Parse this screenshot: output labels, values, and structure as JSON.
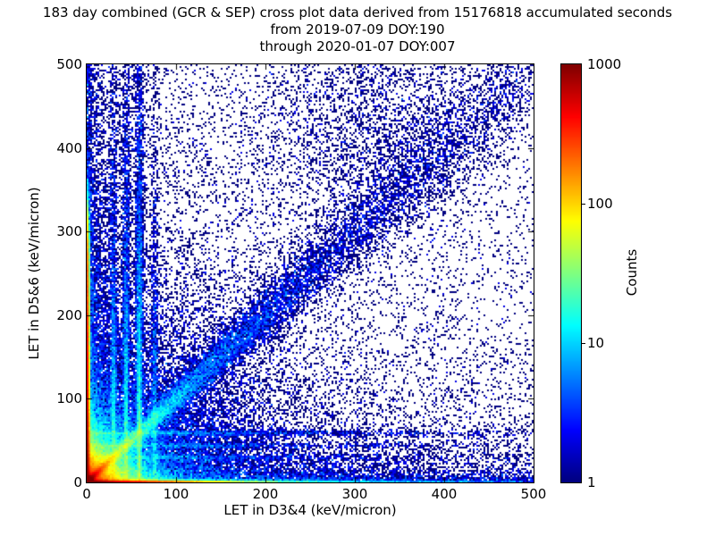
{
  "chart_data": {
    "type": "heatmap",
    "title": "183 day combined (GCR & SEP) cross plot data derived from 15176818 accumulated seconds",
    "subtitle_from": "from 2019-07-09 DOY:190",
    "subtitle_through": "through 2020-01-07 DOY:007",
    "xlabel": "LET in D3&4 (keV/micron)",
    "ylabel": "LET in D5&6 (keV/micron)",
    "xlim": [
      0,
      500
    ],
    "ylim": [
      0,
      500
    ],
    "xticks": [
      0,
      100,
      200,
      300,
      400,
      500
    ],
    "yticks": [
      0,
      100,
      200,
      300,
      400,
      500
    ],
    "grid": false,
    "colorbar": {
      "label": "Counts",
      "scale": "log",
      "range": [
        1,
        1000
      ],
      "ticks": [
        1,
        10,
        100,
        1000
      ],
      "colormap": "jet"
    },
    "palette": {
      "count_1": "#00007f",
      "count_10": "#00d8ff",
      "count_100": "#d4ff23",
      "count_1000": "#7f0000",
      "background": "#ffffff",
      "frame": "#000000"
    },
    "model": {
      "seed": 1234,
      "bins": [
        250,
        234
      ],
      "core": {
        "A": 2200,
        "s": 5.5,
        "B": 500,
        "t": 13
      },
      "bottom_ridge": {
        "w": 2.0,
        "terms": [
          [
            1100,
            55
          ],
          [
            8,
            250
          ]
        ],
        "base": 2.5
      },
      "left_ridge": {
        "w": 2.0,
        "terms": [
          [
            1300,
            160
          ],
          [
            5,
            300
          ]
        ],
        "base": 1.2,
        "cutoff": [
          310,
          18
        ]
      },
      "diagonals": [
        {
          "slope": 1.0,
          "sigma0": 1.6,
          "sigk": 0.055,
          "terms": [
            [
              1000,
              7
            ],
            [
              90,
              30
            ],
            [
              10,
              120
            ],
            [
              0.9,
              380
            ]
          ]
        },
        {
          "slope": 1.5,
          "sigma0": 1.8,
          "sigk": 0.02,
          "terms": [
            [
              60,
              12
            ]
          ]
        },
        {
          "slope": 0.67,
          "sigma0": 1.8,
          "sigk": 0.02,
          "terms": [
            [
              40,
              12
            ]
          ]
        }
      ],
      "stripes_v": [
        {
          "x": 30,
          "A": 16,
          "t": 150
        },
        {
          "x": 44,
          "A": 22,
          "t": 150
        },
        {
          "x": 59,
          "A": 30,
          "t": 160
        },
        {
          "x": 76,
          "A": 9,
          "t": 140
        }
      ],
      "stripes_h": [
        {
          "y": 30,
          "A": 8,
          "t": 130
        },
        {
          "y": 44,
          "A": 9,
          "t": 130
        },
        {
          "y": 59,
          "A": 11,
          "t": 140
        }
      ],
      "stripe_w": [
        1.3,
        0.004
      ],
      "diffuse": [
        {
          "type": "expxy",
          "A": 260,
          "tx": 22,
          "ty": 22
        },
        {
          "type": "expxy",
          "A": 7,
          "tx": 10,
          "ty": 350
        },
        {
          "type": "expxy",
          "A": 7,
          "tx": 350,
          "ty": 10
        },
        {
          "type": "expxy",
          "A": 0.7,
          "tx": 240,
          "ty": 240
        },
        {
          "type": "expxy",
          "A": 0.1,
          "tx": 1200,
          "ty": 1200
        },
        {
          "type": "expxy",
          "A": 0.5,
          "tx": 500,
          "ty": 55
        },
        {
          "type": "expxy",
          "A": 0.3,
          "tx": 40,
          "ty": 500
        },
        {
          "type": "gauss",
          "A": 0.35,
          "cx": 320,
          "cy": 430,
          "s": 70
        },
        {
          "type": "gauss",
          "A": 3.2,
          "cx": 0,
          "cy": 0,
          "s": 95
        }
      ]
    }
  },
  "layout_text": {}
}
